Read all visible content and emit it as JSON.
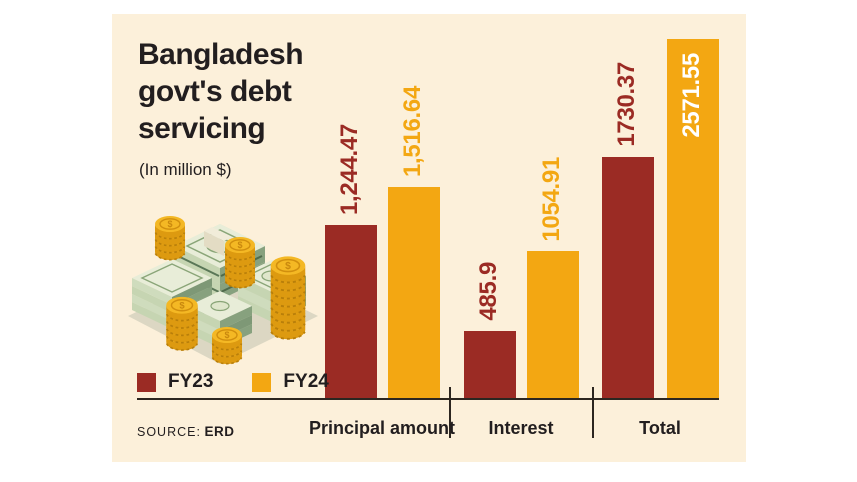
{
  "panel": {
    "title": "Bangladesh govt's debt servicing",
    "subtitle": "(In million $)",
    "source_label": "SOURCE:",
    "source_value": "ERD"
  },
  "legend": [
    {
      "label": "FY23",
      "color": "#9b2b24"
    },
    {
      "label": "FY24",
      "color": "#f3a712"
    }
  ],
  "icons": {
    "money_illustration": "stacks of banknote bundles with gold coin stacks"
  },
  "colors": {
    "page_background": "#ffffff",
    "panel_background": "#fcf0da",
    "fy23": "#9b2b24",
    "fy24": "#f3a712",
    "axis": "#2c2620",
    "text": "#221e1f",
    "inside_bar_label": "#ffffff"
  },
  "chart_data": {
    "type": "bar",
    "title": "Bangladesh govt's debt servicing",
    "units": "million $",
    "categories": [
      "Principal amount",
      "Interest",
      "Total"
    ],
    "series": [
      {
        "name": "FY23",
        "color": "#9b2b24",
        "values": [
          1244.47,
          485.9,
          1730.37
        ],
        "labels": [
          "1,244.47",
          "485.9",
          "1730.37"
        ]
      },
      {
        "name": "FY24",
        "color": "#f3a712",
        "values": [
          1516.64,
          1054.91,
          2571.55
        ],
        "labels": [
          "1,516.64",
          "1054.91",
          "2571.55"
        ]
      }
    ],
    "value_label_rotation": -90,
    "legend_position": "bottom-left",
    "grid": false,
    "source": "ERD"
  }
}
